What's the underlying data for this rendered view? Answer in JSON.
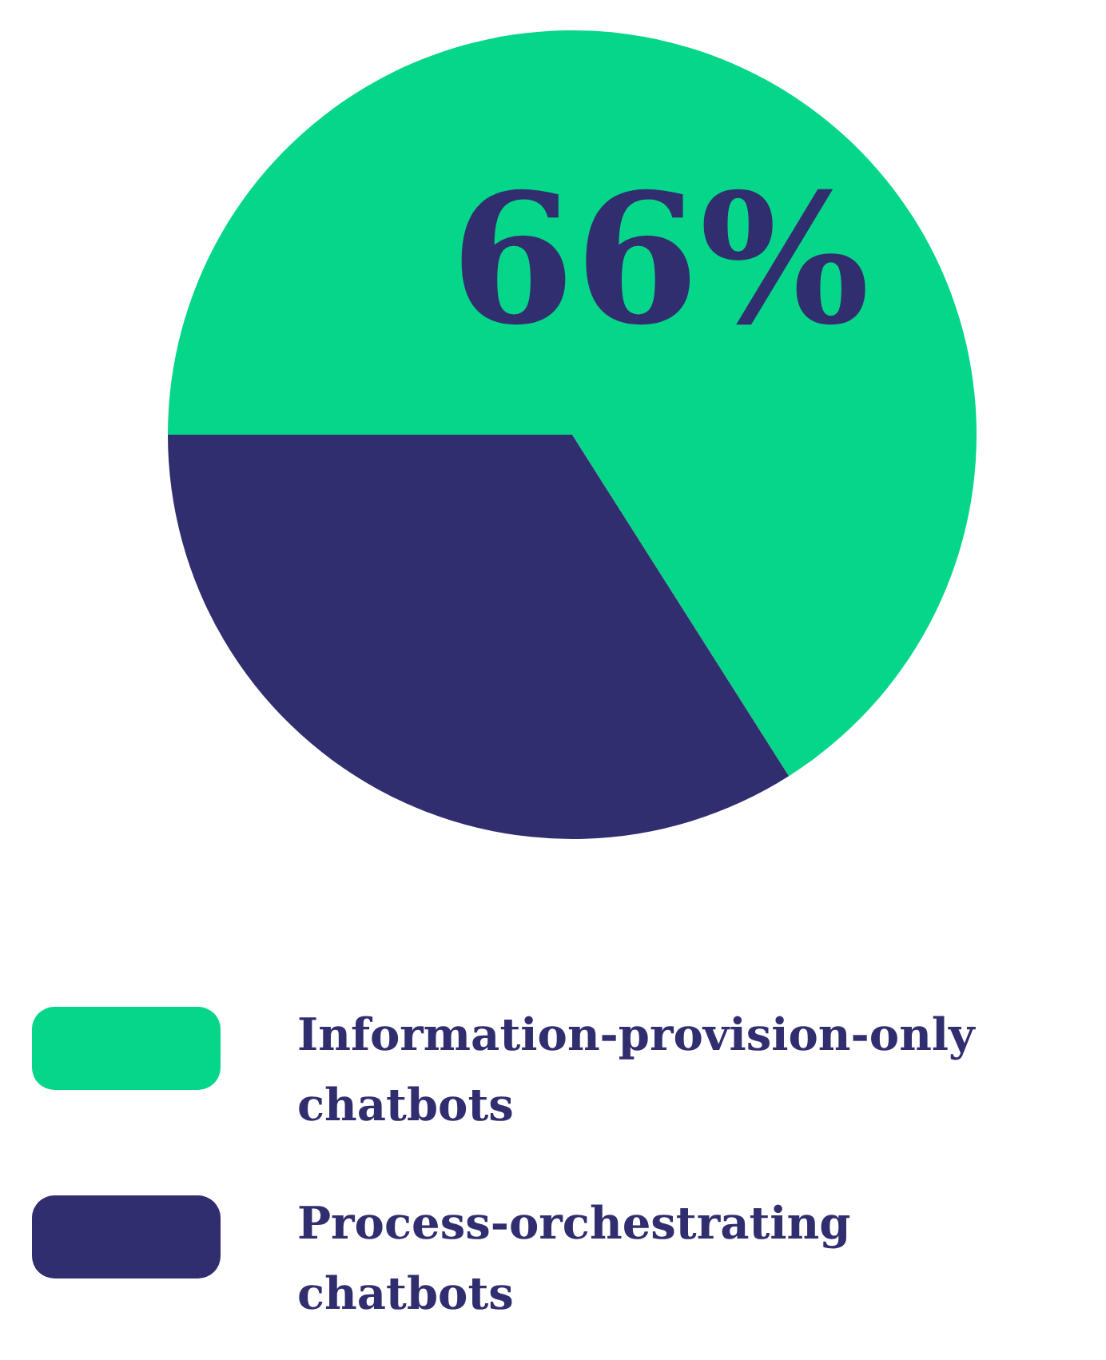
{
  "chart_data": {
    "type": "pie",
    "categories": [
      "Information-provision-only chatbots",
      "Process-orchestrating chatbots"
    ],
    "values": [
      66,
      34
    ],
    "colors": [
      "#05d68a",
      "#312e70"
    ],
    "value_labels": [
      "66%",
      null
    ],
    "legend": "bottom"
  }
}
